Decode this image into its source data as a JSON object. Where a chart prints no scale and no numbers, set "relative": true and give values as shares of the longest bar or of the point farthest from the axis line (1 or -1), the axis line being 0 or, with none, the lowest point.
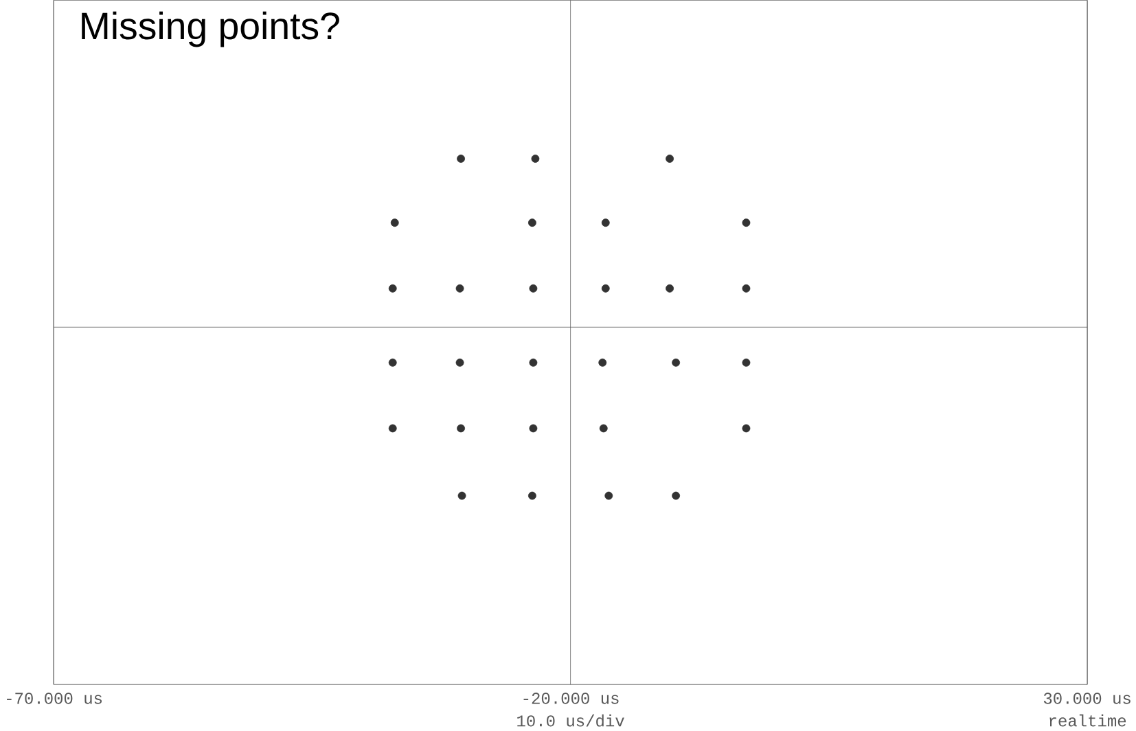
{
  "chart_data": {
    "type": "scatter",
    "title": "Missing points?",
    "relative": true,
    "grid": "x",
    "xlim": [
      -70,
      30
    ],
    "xticks": [
      {
        "value": -70,
        "label": "-70.000 us"
      },
      {
        "value": -20,
        "label": "-20.000 us"
      },
      {
        "value": 30,
        "label": "30.000 us"
      }
    ],
    "annotations": [
      "10.0 us/div",
      "realtime"
    ],
    "series": [
      {
        "color": "#333333",
        "x": [
          -30.6,
          -23.4,
          -10.4,
          -37.0,
          -23.7,
          -16.6,
          -3.0,
          -37.2,
          -30.7,
          -23.6,
          -16.6,
          -10.4,
          -3.0,
          -37.2,
          -30.7,
          -23.6,
          -16.9,
          -9.8,
          -3.0,
          -37.2,
          -30.6,
          -23.6,
          -16.8,
          -3.0,
          -30.5,
          -23.7,
          -16.3,
          -9.8
        ],
        "values": [
          1,
          1,
          1,
          0.62,
          0.62,
          0.62,
          0.62,
          0.23,
          0.23,
          0.23,
          0.23,
          0.23,
          0.23,
          -0.21,
          -0.21,
          -0.21,
          -0.21,
          -0.21,
          -0.21,
          -0.6,
          -0.6,
          -0.6,
          -0.6,
          -0.6,
          -1,
          -1,
          -1,
          -1
        ]
      }
    ]
  }
}
